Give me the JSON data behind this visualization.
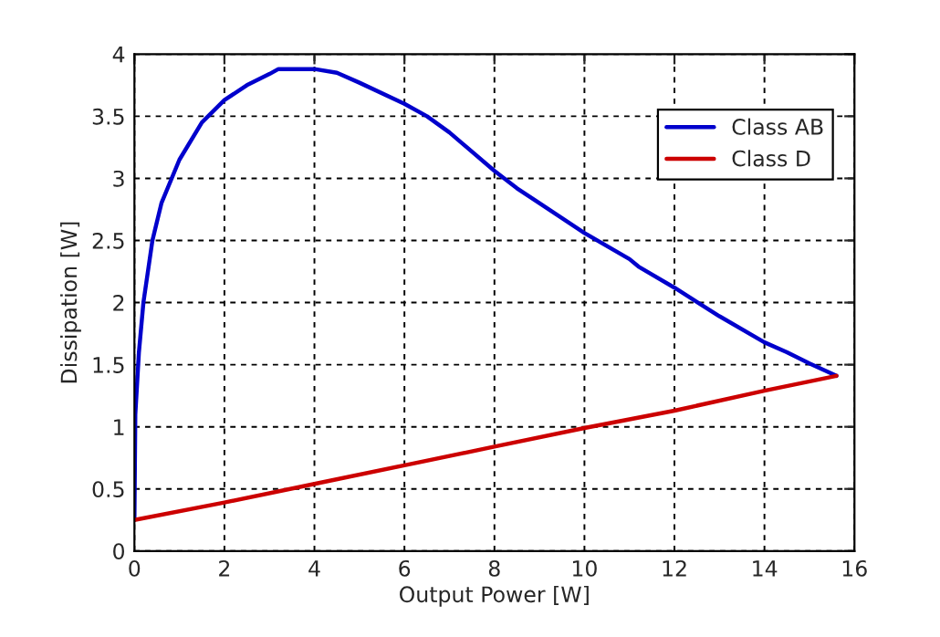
{
  "chart_data": {
    "type": "line",
    "xlabel": "Output Power [W]",
    "ylabel": "Dissipation [W]",
    "xlim": [
      0,
      16
    ],
    "xticks": [
      0,
      2,
      4,
      6,
      8,
      10,
      12,
      14,
      16
    ],
    "ylim": [
      0,
      4
    ],
    "yticks": [
      0,
      0.5,
      1,
      1.5,
      2,
      2.5,
      3,
      3.5,
      4
    ],
    "grid": true,
    "legend": "top right",
    "line_style": "solid",
    "series": [
      {
        "name": "Class AB",
        "color": "#0000cc",
        "x": [
          0,
          0.02,
          0.1,
          0.2,
          0.4,
          0.6,
          1,
          1.5,
          2,
          2.5,
          3,
          3.2,
          4,
          4.5,
          5,
          6,
          6.5,
          7,
          8,
          8.5,
          9,
          10,
          11,
          11.2,
          12,
          13,
          14,
          14.5,
          15,
          15.6
        ],
        "values": [
          0.25,
          1.1,
          1.6,
          2.0,
          2.5,
          2.8,
          3.15,
          3.45,
          3.63,
          3.75,
          3.84,
          3.88,
          3.88,
          3.85,
          3.77,
          3.6,
          3.5,
          3.37,
          3.06,
          2.92,
          2.8,
          2.56,
          2.35,
          2.29,
          2.12,
          1.89,
          1.68,
          1.6,
          1.51,
          1.41
        ]
      },
      {
        "name": "Class D",
        "color": "#cc0000",
        "x": [
          0,
          2,
          4,
          6,
          8,
          10,
          12,
          14,
          15.6
        ],
        "values": [
          0.25,
          0.39,
          0.54,
          0.69,
          0.84,
          0.99,
          1.13,
          1.29,
          1.41
        ]
      }
    ]
  }
}
